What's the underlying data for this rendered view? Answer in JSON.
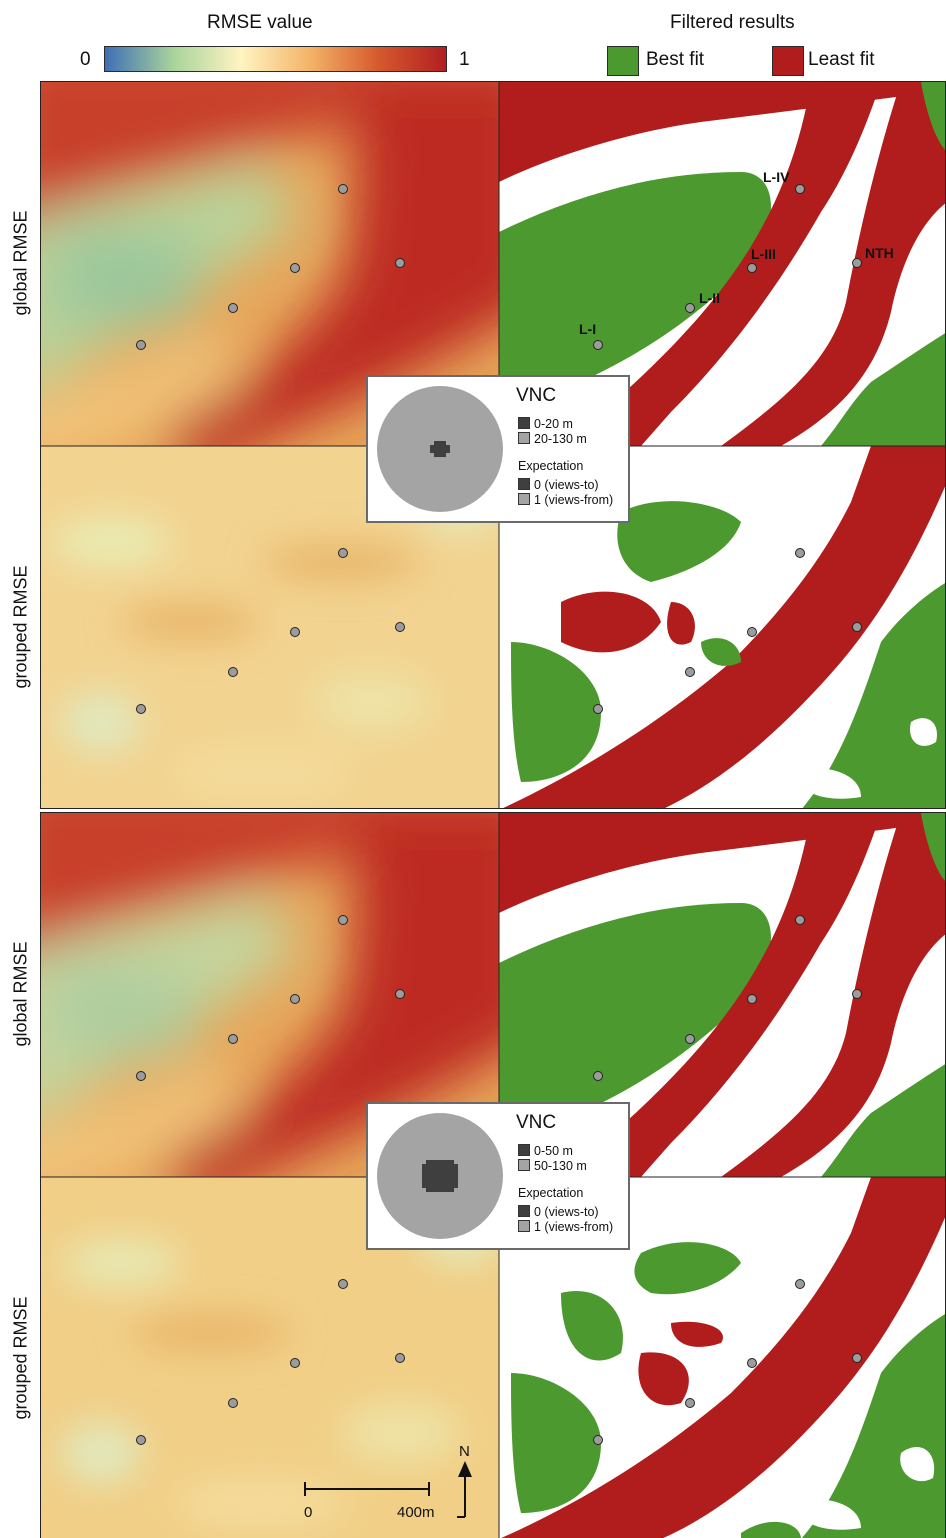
{
  "header": {
    "rmse_title": "RMSE value",
    "filtered_title": "Filtered results",
    "colorbar_min": "0",
    "colorbar_max": "1",
    "colorbar_stops": [
      "#3f6fb5",
      "#a9d39c",
      "#fff4c2",
      "#f3b468",
      "#d65a2e",
      "#b11f21"
    ],
    "legend": [
      {
        "label": "Best fit",
        "color": "#4c9a2f"
      },
      {
        "label": "Least fit",
        "color": "#b11c1c"
      }
    ]
  },
  "colors": {
    "best": "#4c9a2f",
    "least": "#b11c1c",
    "point_fill": "#9c9c9c",
    "vnc_inner": "#3f3f3f",
    "vnc_outer": "#a4a4a4"
  },
  "rows": [
    {
      "label": "global RMSE"
    },
    {
      "label": "grouped RMSE"
    },
    {
      "label": "global RMSE"
    },
    {
      "label": "grouped RMSE"
    }
  ],
  "site_labels": [
    "L-I",
    "L-II",
    "L-III",
    "L-IV",
    "NTH"
  ],
  "vnc_legends": [
    {
      "title": "VNC",
      "items": [
        {
          "label": "0-20 m",
          "color": "#3f3f3f"
        },
        {
          "label": "20-130 m",
          "color": "#a4a4a4"
        }
      ],
      "expectation_title": "Expectation",
      "expectations": [
        {
          "label": "0 (views-to)",
          "color": "#3f3f3f"
        },
        {
          "label": "1 (views-from)",
          "color": "#a4a4a4"
        }
      ]
    },
    {
      "title": "VNC",
      "items": [
        {
          "label": "0-50 m",
          "color": "#3f3f3f"
        },
        {
          "label": "50-130 m",
          "color": "#a4a4a4"
        }
      ],
      "expectation_title": "Expectation",
      "expectations": [
        {
          "label": "0 (views-to)",
          "color": "#3f3f3f"
        },
        {
          "label": "1 (views-from)",
          "color": "#a4a4a4"
        }
      ]
    }
  ],
  "scale_bar": {
    "start_label": "0",
    "end_label": "400m"
  },
  "north_label": "N"
}
